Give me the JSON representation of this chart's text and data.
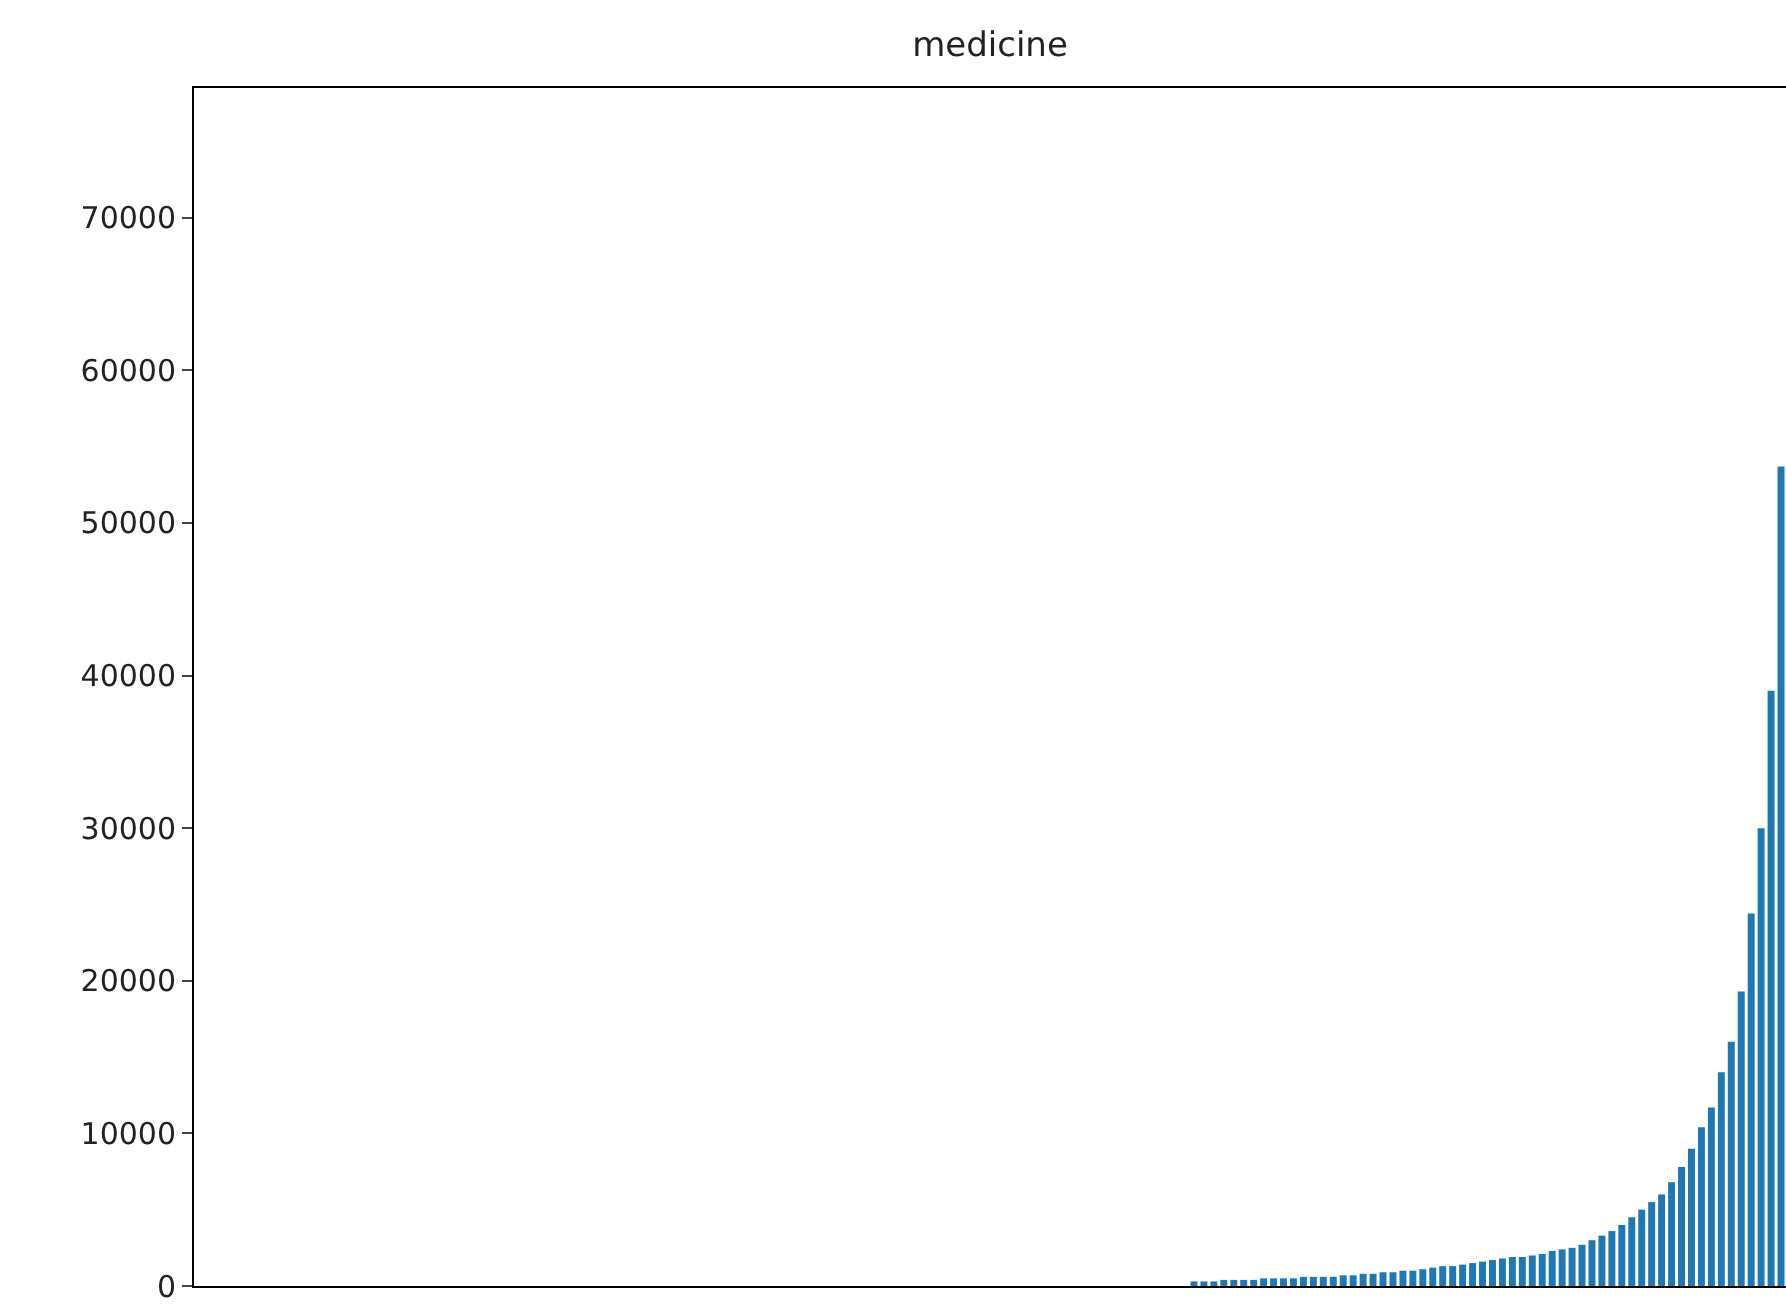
{
  "chart_data": {
    "type": "bar",
    "title": "medicine",
    "color": "#1f77b4",
    "categories": [
      null,
      null,
      null,
      null,
      null,
      null,
      null,
      null,
      null,
      null,
      null,
      null,
      null,
      null,
      null,
      null,
      null,
      null,
      null,
      null,
      null,
      null,
      null,
      null,
      null,
      null,
      null,
      null,
      null,
      null,
      null,
      null,
      null,
      null,
      null,
      null,
      null,
      null,
      null,
      null,
      null,
      null,
      null,
      null,
      null,
      null,
      null,
      null,
      null,
      null,
      null,
      null,
      null,
      null,
      null,
      null,
      null,
      null,
      null,
      null,
      null,
      null,
      null,
      null,
      null,
      null,
      null,
      null,
      null,
      null,
      null,
      null,
      null,
      null,
      null,
      null,
      null,
      null,
      null,
      null,
      null,
      null,
      null,
      null,
      null,
      null,
      null,
      null,
      null,
      null,
      null,
      null,
      null,
      null,
      null,
      null,
      null,
      null,
      null,
      null,
      null,
      null,
      null,
      null,
      null,
      null,
      null,
      null,
      null,
      null,
      null,
      null,
      null,
      null,
      null,
      null,
      null,
      null,
      null,
      null,
      null,
      null,
      null,
      null,
      null,
      null,
      null,
      null,
      null,
      null,
      null,
      null,
      null,
      null,
      null,
      null,
      null,
      null,
      null,
      null,
      null,
      null,
      null,
      null,
      null,
      null,
      null,
      null,
      null,
      null,
      null,
      null,
      null,
      null,
      null,
      null,
      null,
      null,
      null,
      null
    ],
    "values": [
      0,
      0,
      0,
      0,
      0,
      0,
      0,
      0,
      0,
      0,
      0,
      0,
      0,
      0,
      0,
      0,
      0,
      0,
      0,
      0,
      0,
      0,
      0,
      0,
      0,
      0,
      0,
      0,
      0,
      0,
      0,
      0,
      0,
      0,
      0,
      0,
      0,
      0,
      0,
      0,
      0,
      0,
      0,
      0,
      0,
      0,
      0,
      0,
      0,
      0,
      0,
      0,
      0,
      0,
      0,
      0,
      0,
      0,
      0,
      0,
      0,
      0,
      0,
      0,
      0,
      0,
      0,
      0,
      0,
      0,
      0,
      0,
      0,
      0,
      0,
      0,
      0,
      0,
      0,
      0,
      0,
      0,
      0,
      0,
      0,
      0,
      0,
      0,
      0,
      0,
      0,
      0,
      0,
      0,
      0,
      0,
      0,
      0,
      0,
      0,
      300,
      300,
      300,
      400,
      400,
      400,
      400,
      500,
      500,
      500,
      500,
      600,
      600,
      600,
      600,
      700,
      700,
      800,
      800,
      900,
      900,
      1000,
      1000,
      1100,
      1200,
      1300,
      1300,
      1400,
      1500,
      1600,
      1700,
      1800,
      1900,
      1900,
      2000,
      2100,
      2300,
      2400,
      2500,
      2700,
      3000,
      3300,
      3600,
      4000,
      4500,
      5000,
      5500,
      6000,
      6800,
      7800,
      9000,
      10400,
      11700,
      14000,
      16000,
      19300,
      24400,
      30000,
      39000,
      53700
    ],
    "ylim": [
      0,
      78500
    ],
    "yticks": [
      0,
      10000,
      20000,
      30000,
      40000,
      50000,
      60000,
      70000
    ],
    "tick_labels": "y"
  }
}
